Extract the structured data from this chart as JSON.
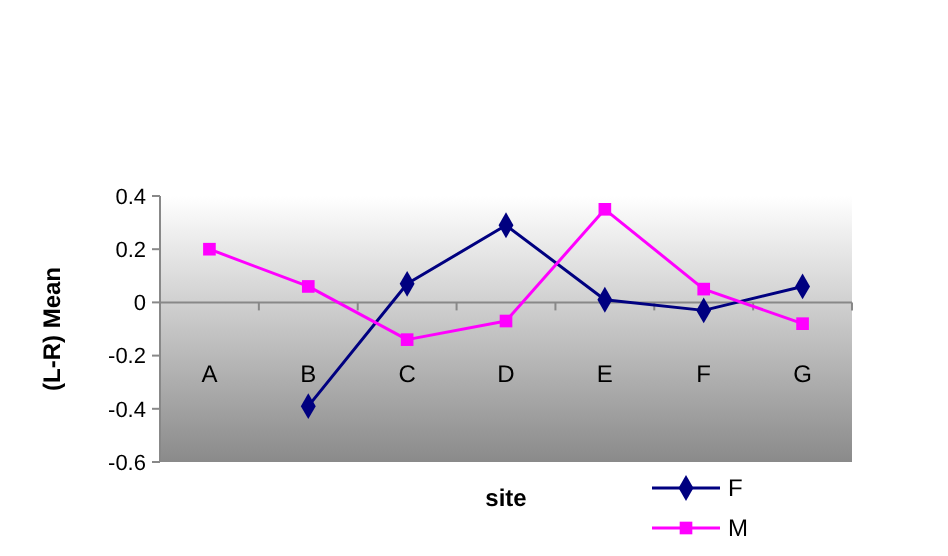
{
  "chart_data": {
    "type": "line",
    "xlabel": "site",
    "ylabel": "(L-R) Mean",
    "categories": [
      "A",
      "B",
      "C",
      "D",
      "E",
      "F",
      "G"
    ],
    "series": [
      {
        "name": "F",
        "color": "#000080",
        "marker": "diamond",
        "values": [
          null,
          -0.39,
          0.07,
          0.29,
          0.01,
          -0.03,
          0.06
        ]
      },
      {
        "name": "M",
        "color": "#ff00ff",
        "marker": "square",
        "values": [
          0.2,
          0.06,
          -0.14,
          -0.07,
          0.35,
          0.05,
          -0.08
        ]
      }
    ],
    "ylim": [
      -0.6,
      0.4
    ],
    "yticks": [
      -0.6,
      -0.4,
      -0.2,
      0,
      0.2,
      0.4
    ],
    "grid": false,
    "legend": "bottom right"
  }
}
